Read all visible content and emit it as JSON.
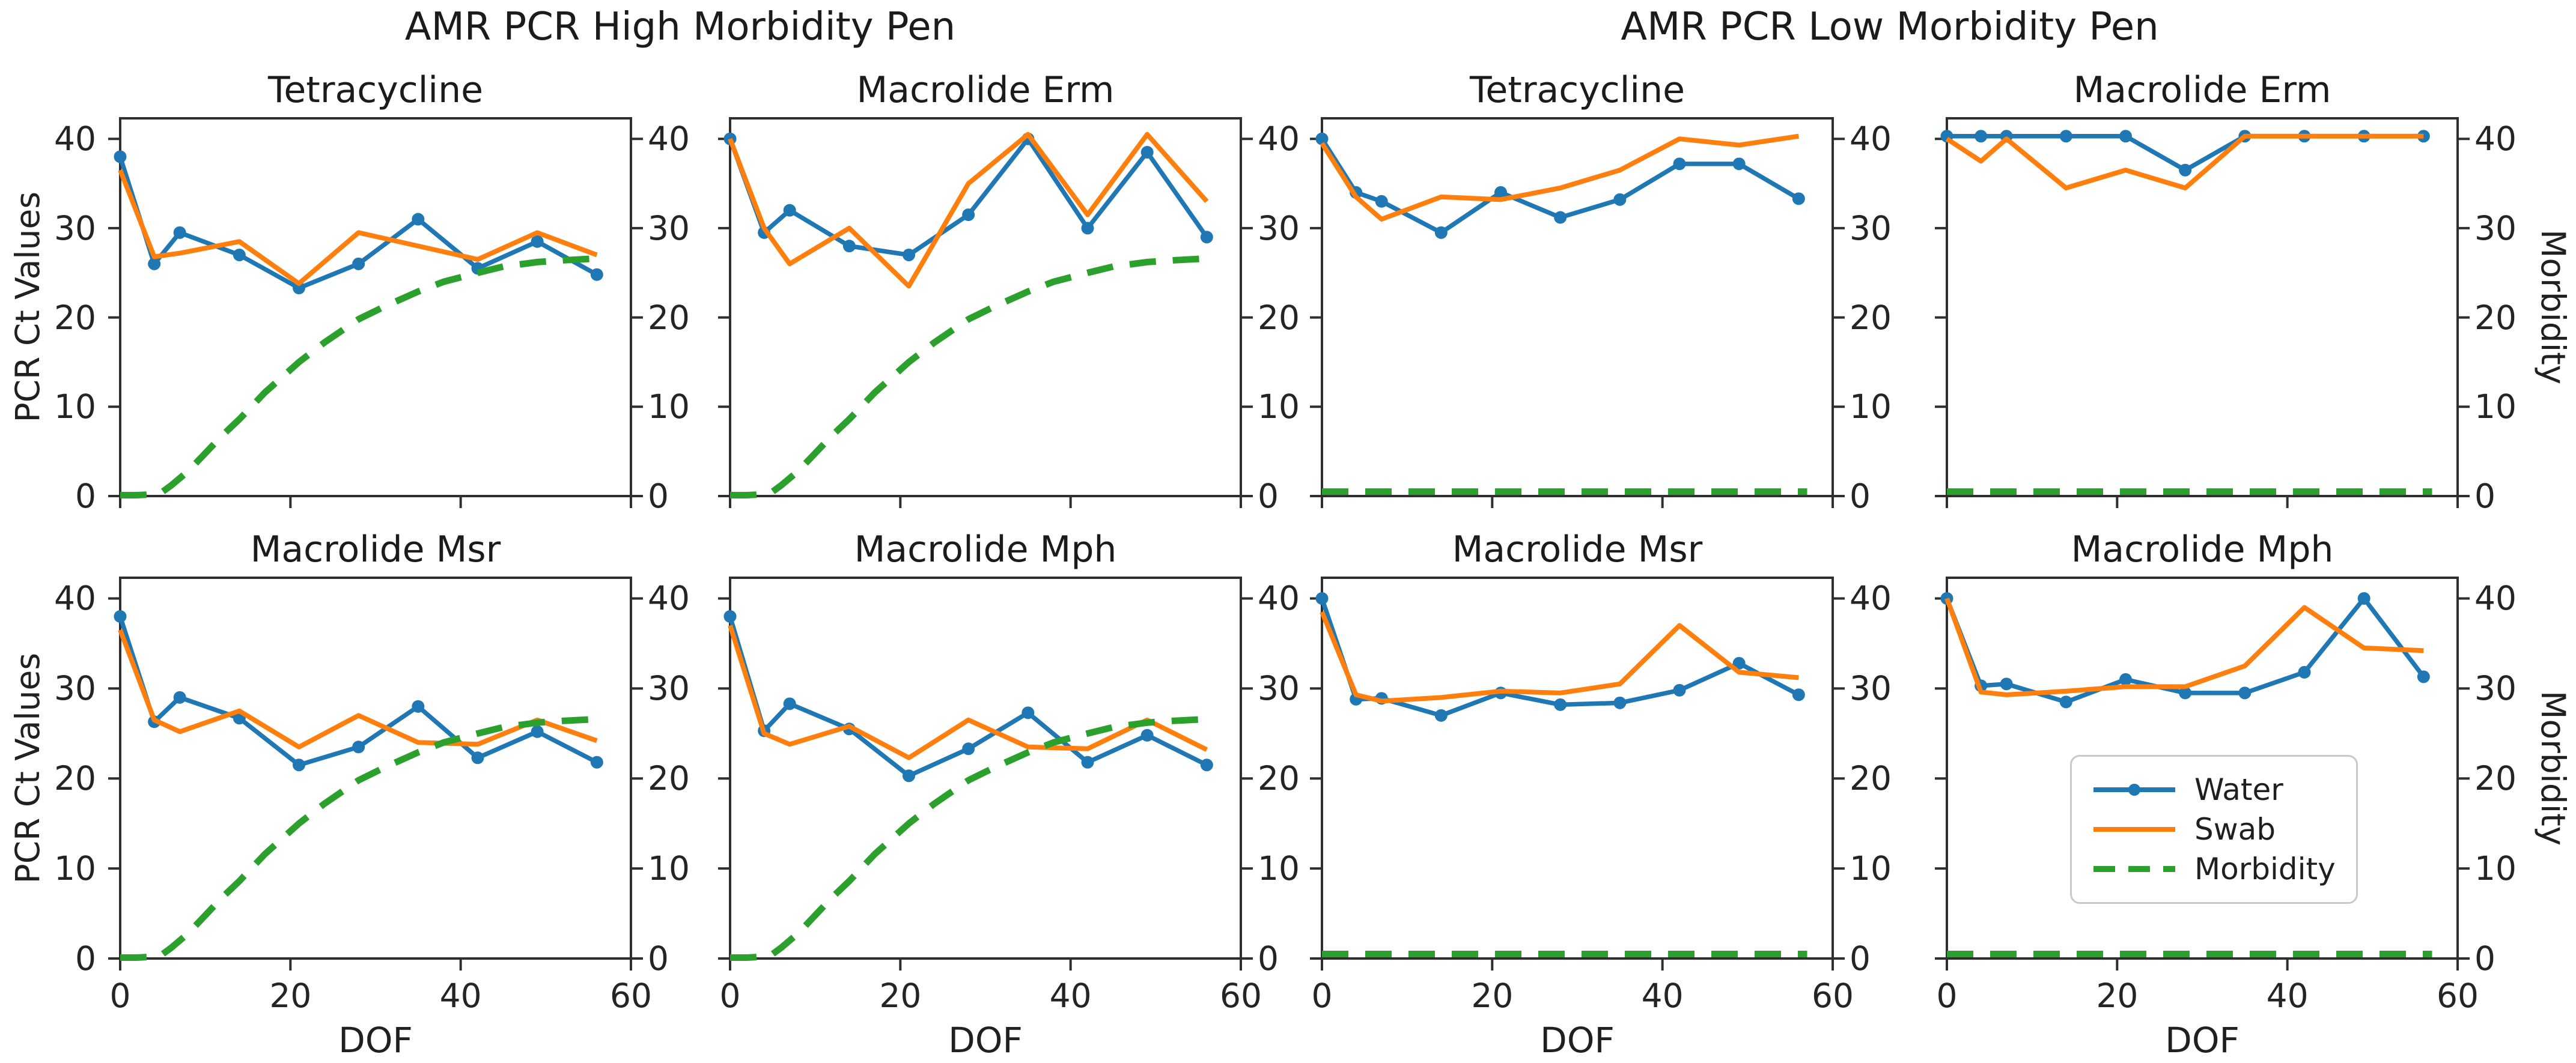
{
  "chart_data": {
    "type": "line",
    "x_values": [
      0,
      4,
      7,
      14,
      21,
      28,
      35,
      42,
      49,
      56
    ],
    "xlabel": "DOF",
    "ylabel_left": "PCR Ct Values",
    "ylabel_right": "Morbidity",
    "xlim": [
      0,
      60
    ],
    "ylim": [
      0,
      42.3
    ],
    "xticks": [
      0,
      20,
      40,
      60
    ],
    "yticks": [
      0,
      10,
      20,
      30,
      40
    ],
    "grid": false,
    "colors": {
      "water": "#1f77b4",
      "swab": "#ff7f0e",
      "morbidity": "#2ca02c",
      "spine": "#2f2f2f",
      "text": "#1c1c1c"
    },
    "legend": {
      "location": "inside low Macrolide Mph panel",
      "items": [
        {
          "label": "Water",
          "color": "#1f77b4",
          "style": "solid-marker"
        },
        {
          "label": "Swab",
          "color": "#ff7f0e",
          "style": "solid"
        },
        {
          "label": "Morbidity",
          "color": "#2ca02c",
          "style": "dashed"
        }
      ]
    },
    "morbidity_curves": {
      "high": {
        "x": [
          0,
          2,
          4,
          5,
          6,
          8,
          10,
          12,
          14,
          17,
          21,
          24,
          28,
          31,
          35,
          38,
          42,
          45,
          49,
          52,
          56
        ],
        "y": [
          0.1,
          0.1,
          0.2,
          0.5,
          1.2,
          2.8,
          4.8,
          6.8,
          8.6,
          11.6,
          15.0,
          17.2,
          19.8,
          21.2,
          22.9,
          24.0,
          25.0,
          25.7,
          26.2,
          26.4,
          26.6
        ]
      },
      "low": {
        "x": [
          0,
          57
        ],
        "y": [
          0.5,
          0.5
        ]
      }
    },
    "groups": [
      {
        "title": "AMR PCR High Morbidity Pen",
        "pen": "high",
        "morbidity": "high",
        "panels": [
          {
            "title": "Tetracycline",
            "water": [
              38,
              26,
              29.5,
              27,
              23.3,
              26,
              31,
              25.5,
              28.5,
              24.8
            ],
            "swab": [
              36.5,
              26.8,
              27.2,
              28.5,
              23.8,
              29.5,
              28,
              26.5,
              29.5,
              27
            ],
            "legend": false
          },
          {
            "title": "Macrolide Erm",
            "water": [
              40,
              29.5,
              32,
              28,
              27,
              31.5,
              40,
              30,
              38.5,
              29
            ],
            "swab": [
              40,
              30,
              26,
              30,
              23.5,
              35,
              40.5,
              31.5,
              40.5,
              33
            ],
            "legend": false
          },
          {
            "title": "Macrolide Msr",
            "water": [
              38,
              26.3,
              29,
              26.7,
              21.5,
              23.5,
              28,
              22.3,
              25.2,
              21.8
            ],
            "swab": [
              36.5,
              26.5,
              25.2,
              27.5,
              23.5,
              27,
              24,
              23.8,
              26.5,
              24.2
            ],
            "legend": false
          },
          {
            "title": "Macrolide Mph",
            "water": [
              38,
              25.3,
              28.3,
              25.5,
              20.3,
              23.3,
              27.3,
              21.8,
              24.8,
              21.5
            ],
            "swab": [
              37,
              25,
              23.8,
              25.8,
              22.3,
              26.5,
              23.5,
              23.3,
              26.5,
              23.2
            ],
            "legend": false
          }
        ]
      },
      {
        "title": "AMR PCR Low Morbidity Pen",
        "pen": "low",
        "morbidity": "low",
        "panels": [
          {
            "title": "Tetracycline",
            "water": [
              40,
              34,
              33,
              29.5,
              34,
              31.2,
              33.2,
              37.2,
              37.2,
              33.3
            ],
            "swab": [
              39.5,
              33.5,
              31,
              33.5,
              33.2,
              34.5,
              36.5,
              40,
              39.3,
              40.3
            ],
            "legend": false
          },
          {
            "title": "Macrolide Erm",
            "water": [
              40.3,
              40.3,
              40.3,
              40.3,
              40.3,
              36.5,
              40.3,
              40.3,
              40.3,
              40.3
            ],
            "swab": [
              40,
              37.5,
              40,
              34.5,
              36.5,
              34.5,
              40.3,
              40.3,
              40.3,
              40.3
            ],
            "legend": false
          },
          {
            "title": "Macrolide Msr",
            "water": [
              40,
              28.8,
              28.9,
              27,
              29.5,
              28.2,
              28.4,
              29.8,
              32.8,
              29.3
            ],
            "swab": [
              38.5,
              29.3,
              28.6,
              29,
              29.7,
              29.5,
              30.5,
              37,
              31.8,
              31.2
            ],
            "legend": false
          },
          {
            "title": "Macrolide Mph",
            "water": [
              40,
              30.3,
              30.5,
              28.5,
              31,
              29.5,
              29.5,
              31.8,
              40,
              31.3
            ],
            "swab": [
              40,
              29.6,
              29.3,
              29.7,
              30.2,
              30.2,
              32.5,
              39,
              34.5,
              34.2
            ],
            "legend": true
          }
        ]
      }
    ]
  }
}
